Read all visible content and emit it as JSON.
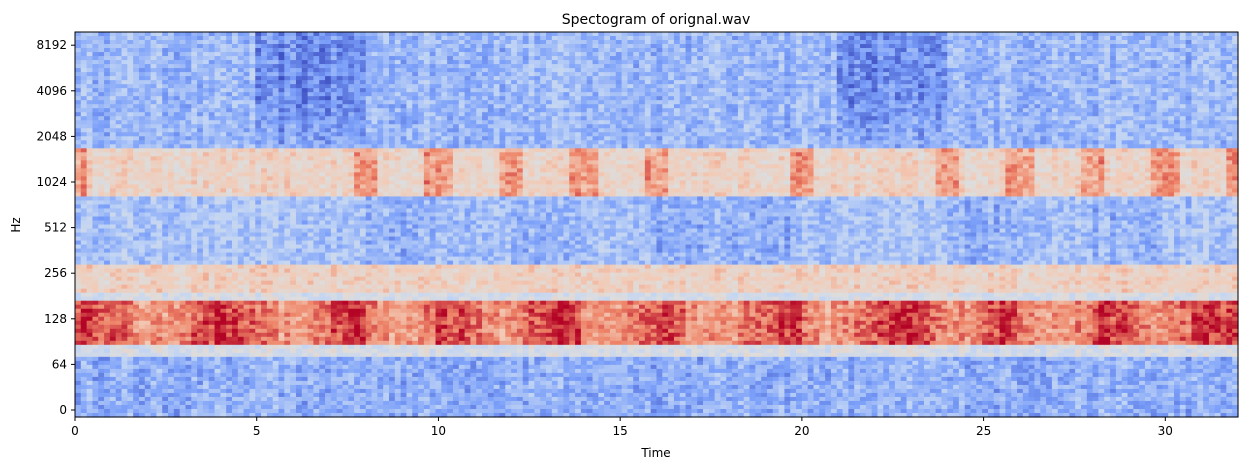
{
  "chart_data": {
    "type": "heatmap",
    "title": "Spectogram of orignal.wav",
    "xlabel": "Time",
    "ylabel": "Hz",
    "xlim": [
      0,
      32
    ],
    "x_ticks": [
      0,
      5,
      10,
      15,
      20,
      25,
      30
    ],
    "x_tick_labels": [
      "0",
      "5",
      "10",
      "15",
      "20",
      "25",
      "30"
    ],
    "y_scale": "symlog",
    "y_ticks": [
      0,
      64,
      128,
      256,
      512,
      1024,
      2048,
      4096,
      8192
    ],
    "y_tick_labels": [
      "0",
      "64",
      "128",
      "256",
      "512",
      "1024",
      "2048",
      "4096",
      "8192"
    ],
    "ylim_hz": [
      0,
      11025
    ],
    "colormap": "coolwarm",
    "colormap_stops": [
      "#3b4cc0",
      "#7b9ff9",
      "#c0d4f5",
      "#dddddd",
      "#f2cbb7",
      "#ee8468",
      "#b40426"
    ],
    "segment_boundaries_s": [
      0,
      8,
      10,
      12,
      14,
      16,
      20,
      24,
      26,
      28,
      30,
      32
    ],
    "frequency_bands": [
      {
        "from_hz": 0,
        "to_hz": 70,
        "intensity": 0.22
      },
      {
        "from_hz": 70,
        "to_hz": 85,
        "intensity": 0.45
      },
      {
        "from_hz": 85,
        "to_hz": 165,
        "intensity": 0.85
      },
      {
        "from_hz": 165,
        "to_hz": 190,
        "intensity": 0.45
      },
      {
        "from_hz": 190,
        "to_hz": 300,
        "intensity": 0.62
      },
      {
        "from_hz": 300,
        "to_hz": 800,
        "intensity": 0.28
      },
      {
        "from_hz": 800,
        "to_hz": 1700,
        "intensity": 0.6
      },
      {
        "from_hz": 1700,
        "to_hz": 11025,
        "intensity": 0.25
      }
    ]
  }
}
